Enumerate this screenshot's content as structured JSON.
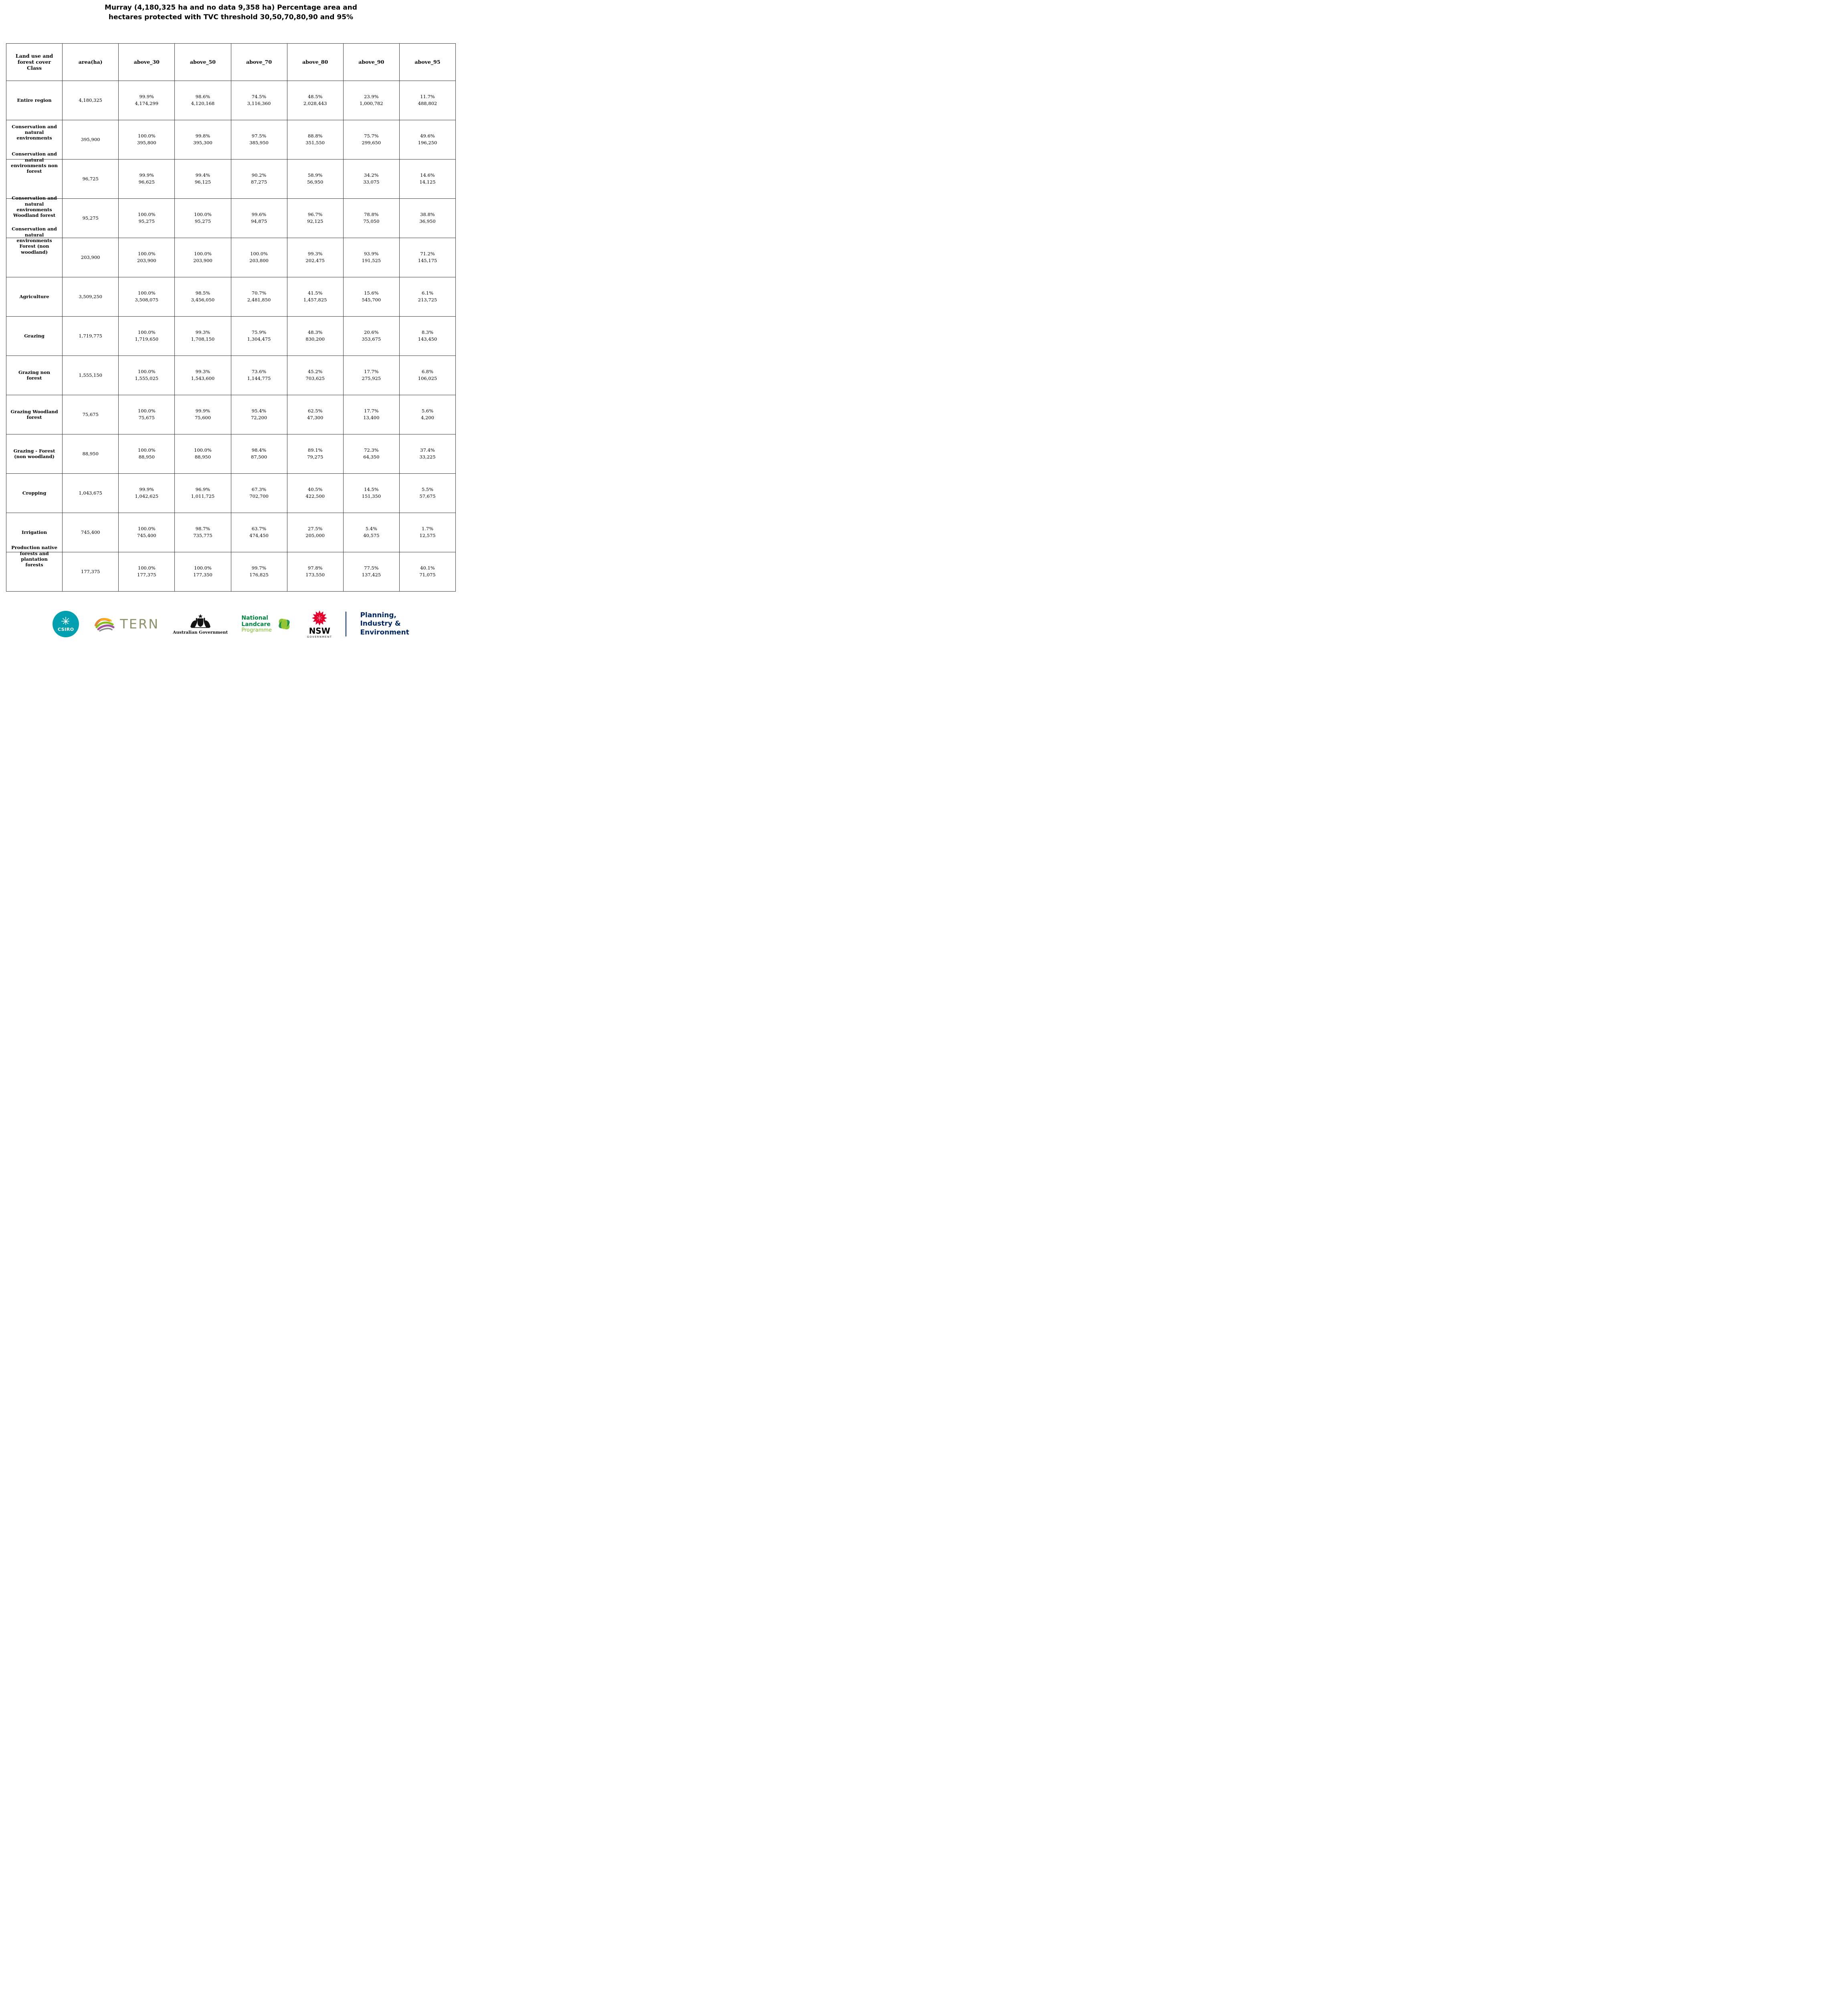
{
  "title": "Murray (4,180,325 ha and no data 9,358 ha) Percentage area and\nhectares protected with TVC threshold 30,50,70,80,90 and 95%",
  "table": {
    "columns": [
      "Land use and\nforest cover\nClass",
      "area(ha)",
      "above_30",
      "above_50",
      "above_70",
      "above_80",
      "above_90",
      "above_95"
    ],
    "rows": [
      {
        "label": "Entire region",
        "area": "4,180,325",
        "values": [
          {
            "pct": "99.9%",
            "ha": "4,174,299"
          },
          {
            "pct": "98.6%",
            "ha": "4,120,168"
          },
          {
            "pct": "74.5%",
            "ha": "3,116,360"
          },
          {
            "pct": "48.5%",
            "ha": "2,028,443"
          },
          {
            "pct": "23.9%",
            "ha": "1,000,782"
          },
          {
            "pct": "11.7%",
            "ha": "488,802"
          }
        ]
      },
      {
        "label": "Conservation and\nnatural\nenvironments",
        "area": "395,900",
        "values": [
          {
            "pct": "100.0%",
            "ha": "395,800"
          },
          {
            "pct": "99.8%",
            "ha": "395,300"
          },
          {
            "pct": "97.5%",
            "ha": "385,950"
          },
          {
            "pct": "88.8%",
            "ha": "351,550"
          },
          {
            "pct": "75.7%",
            "ha": "299,650"
          },
          {
            "pct": "49.6%",
            "ha": "196,250"
          }
        ]
      },
      {
        "label": "Conservation and\nnatural\nenvironments non\nforest",
        "area": "96,725",
        "values": [
          {
            "pct": "99.9%",
            "ha": "96,625"
          },
          {
            "pct": "99.4%",
            "ha": "96,125"
          },
          {
            "pct": "90.2%",
            "ha": "87,275"
          },
          {
            "pct": "58.9%",
            "ha": "56,950"
          },
          {
            "pct": "34.2%",
            "ha": "33,075"
          },
          {
            "pct": "14.6%",
            "ha": "14,125"
          }
        ]
      },
      {
        "label": "Conservation and\nnatural\nenvironments\nWoodland forest",
        "area": "95,275",
        "values": [
          {
            "pct": "100.0%",
            "ha": "95,275"
          },
          {
            "pct": "100.0%",
            "ha": "95,275"
          },
          {
            "pct": "99.6%",
            "ha": "94,875"
          },
          {
            "pct": "96.7%",
            "ha": "92,125"
          },
          {
            "pct": "78.8%",
            "ha": "75,050"
          },
          {
            "pct": "38.8%",
            "ha": "36,950"
          }
        ]
      },
      {
        "label": "Conservation and\nnatural\nenvironments\nForest (non\nwoodland)",
        "area": "203,900",
        "values": [
          {
            "pct": "100.0%",
            "ha": "203,900"
          },
          {
            "pct": "100.0%",
            "ha": "203,900"
          },
          {
            "pct": "100.0%",
            "ha": "203,800"
          },
          {
            "pct": "99.3%",
            "ha": "202,475"
          },
          {
            "pct": "93.9%",
            "ha": "191,525"
          },
          {
            "pct": "71.2%",
            "ha": "145,175"
          }
        ]
      },
      {
        "label": "Agriculture",
        "area": "3,509,250",
        "values": [
          {
            "pct": "100.0%",
            "ha": "3,508,075"
          },
          {
            "pct": "98.5%",
            "ha": "3,456,050"
          },
          {
            "pct": "70.7%",
            "ha": "2,481,850"
          },
          {
            "pct": "41.5%",
            "ha": "1,457,825"
          },
          {
            "pct": "15.6%",
            "ha": "545,700"
          },
          {
            "pct": "6.1%",
            "ha": "213,725"
          }
        ]
      },
      {
        "label": "Grazing",
        "area": "1,719,775",
        "values": [
          {
            "pct": "100.0%",
            "ha": "1,719,650"
          },
          {
            "pct": "99.3%",
            "ha": "1,708,150"
          },
          {
            "pct": "75.9%",
            "ha": "1,304,475"
          },
          {
            "pct": "48.3%",
            "ha": "830,200"
          },
          {
            "pct": "20.6%",
            "ha": "353,675"
          },
          {
            "pct": "8.3%",
            "ha": "143,450"
          }
        ]
      },
      {
        "label": "Grazing non\nforest",
        "area": "1,555,150",
        "values": [
          {
            "pct": "100.0%",
            "ha": "1,555,025"
          },
          {
            "pct": "99.3%",
            "ha": "1,543,600"
          },
          {
            "pct": "73.6%",
            "ha": "1,144,775"
          },
          {
            "pct": "45.2%",
            "ha": "703,625"
          },
          {
            "pct": "17.7%",
            "ha": "275,925"
          },
          {
            "pct": "6.8%",
            "ha": "106,025"
          }
        ]
      },
      {
        "label": "Grazing Woodland\nforest",
        "area": "75,675",
        "values": [
          {
            "pct": "100.0%",
            "ha": "75,675"
          },
          {
            "pct": "99.9%",
            "ha": "75,600"
          },
          {
            "pct": "95.4%",
            "ha": "72,200"
          },
          {
            "pct": "62.5%",
            "ha": "47,300"
          },
          {
            "pct": "17.7%",
            "ha": "13,400"
          },
          {
            "pct": "5.6%",
            "ha": "4,200"
          }
        ]
      },
      {
        "label": "Grazing - Forest\n(non woodland)",
        "area": "88,950",
        "values": [
          {
            "pct": "100.0%",
            "ha": "88,950"
          },
          {
            "pct": "100.0%",
            "ha": "88,950"
          },
          {
            "pct": "98.4%",
            "ha": "87,500"
          },
          {
            "pct": "89.1%",
            "ha": "79,275"
          },
          {
            "pct": "72.3%",
            "ha": "64,350"
          },
          {
            "pct": "37.4%",
            "ha": "33,225"
          }
        ]
      },
      {
        "label": "Cropping",
        "area": "1,043,675",
        "values": [
          {
            "pct": "99.9%",
            "ha": "1,042,625"
          },
          {
            "pct": "96.9%",
            "ha": "1,011,725"
          },
          {
            "pct": "67.3%",
            "ha": "702,700"
          },
          {
            "pct": "40.5%",
            "ha": "422,500"
          },
          {
            "pct": "14.5%",
            "ha": "151,350"
          },
          {
            "pct": "5.5%",
            "ha": "57,675"
          }
        ]
      },
      {
        "label": "Irrigation",
        "area": "745,400",
        "values": [
          {
            "pct": "100.0%",
            "ha": "745,400"
          },
          {
            "pct": "98.7%",
            "ha": "735,775"
          },
          {
            "pct": "63.7%",
            "ha": "474,450"
          },
          {
            "pct": "27.5%",
            "ha": "205,000"
          },
          {
            "pct": "5.4%",
            "ha": "40,575"
          },
          {
            "pct": "1.7%",
            "ha": "12,575"
          }
        ]
      },
      {
        "label": "Production native\nforests and\nplantation\nforests",
        "area": "177,375",
        "values": [
          {
            "pct": "100.0%",
            "ha": "177,375"
          },
          {
            "pct": "100.0%",
            "ha": "177,350"
          },
          {
            "pct": "99.7%",
            "ha": "176,825"
          },
          {
            "pct": "97.8%",
            "ha": "173,550"
          },
          {
            "pct": "77.5%",
            "ha": "137,425"
          },
          {
            "pct": "40.1%",
            "ha": "71,075"
          }
        ]
      }
    ]
  },
  "footer": {
    "csiro": {
      "label": "CSIRO"
    },
    "tern": {
      "label": "TERN"
    },
    "aus_gov": {
      "label": "Australian Government"
    },
    "landcare": {
      "line1": "National",
      "line2": "Landcare",
      "line3": "Programme"
    },
    "nsw": {
      "label": "NSW",
      "sublabel": "GOVERNMENT"
    },
    "dpie": {
      "line1": "Planning,",
      "line2": "Industry &",
      "line3": "Environment"
    }
  },
  "colors": {
    "csiro_teal": "#00a0b0",
    "tern_gray_green": "#8d8f68",
    "landcare_green": "#00853f",
    "landcare_light_green": "#78be20",
    "nsw_red": "#e4002b",
    "dpie_navy": "#002664",
    "table_border": "#3a3a3a"
  }
}
